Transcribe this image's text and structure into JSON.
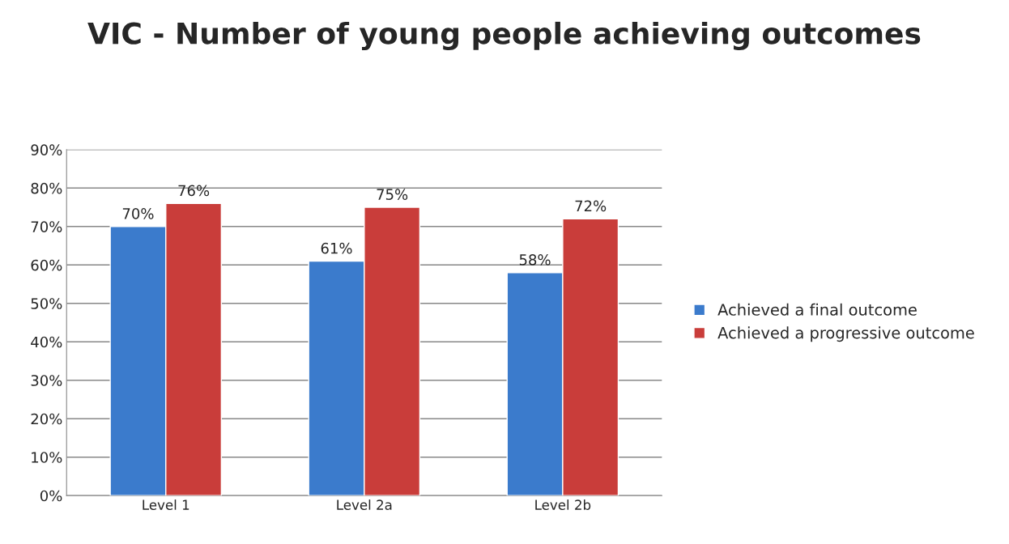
{
  "chart_data": {
    "type": "bar",
    "title": "VIC - Number of young people achieving outcomes",
    "categories": [
      "Level 1",
      "Level 2a",
      "Level 2b"
    ],
    "series": [
      {
        "name": "Achieved a final outcome",
        "color": "#3b7bcc",
        "values": [
          70,
          61,
          58
        ],
        "value_labels": [
          "70%",
          "61%",
          "58%"
        ]
      },
      {
        "name": "Achieved a progressive outcome",
        "color": "#c93d3a",
        "values": [
          76,
          75,
          72
        ],
        "value_labels": [
          "76%",
          "75%",
          "72%"
        ]
      }
    ],
    "ylim": [
      0,
      90
    ],
    "yticks": [
      {
        "value": 0,
        "label": "0%"
      },
      {
        "value": 10,
        "label": "10%"
      },
      {
        "value": 20,
        "label": "20%"
      },
      {
        "value": 30,
        "label": "30%"
      },
      {
        "value": 40,
        "label": "40%"
      },
      {
        "value": 50,
        "label": "50%"
      },
      {
        "value": 60,
        "label": "60%"
      },
      {
        "value": 70,
        "label": "70%"
      },
      {
        "value": 80,
        "label": "80%"
      },
      {
        "value": 90,
        "label": "90%"
      }
    ],
    "grid": "y",
    "legend": "right"
  }
}
